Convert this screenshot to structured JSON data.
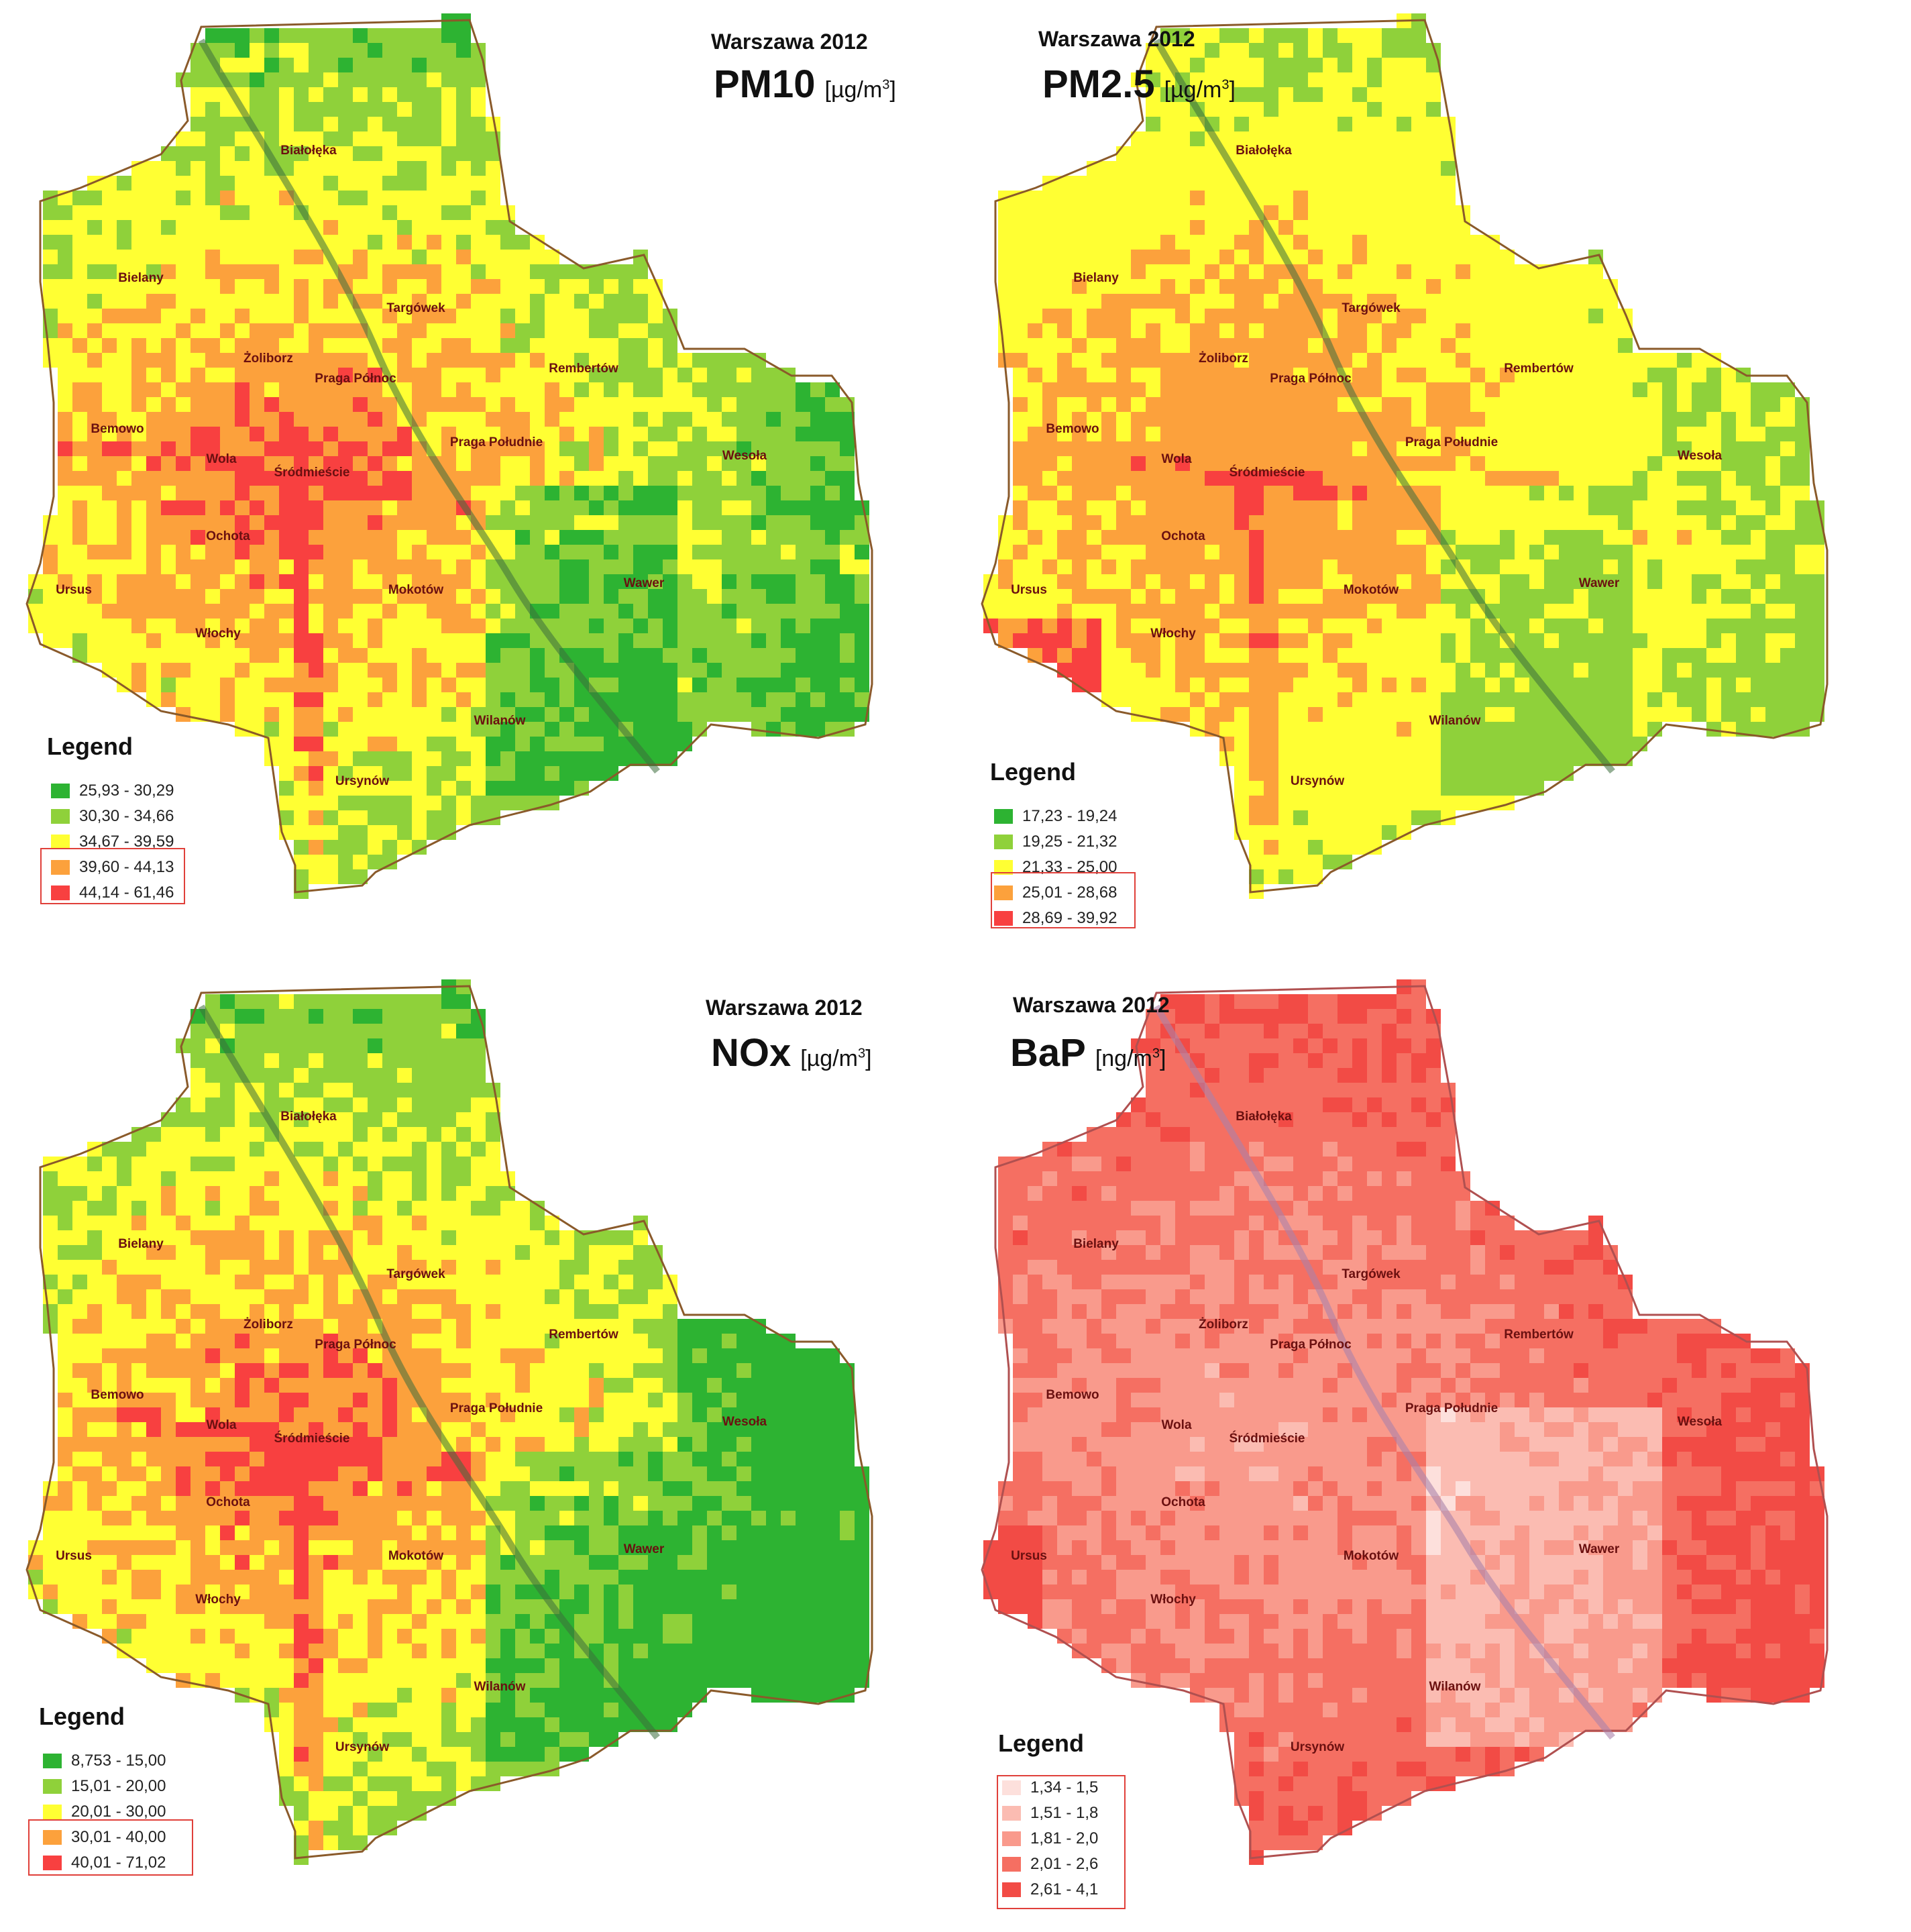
{
  "panels": [
    {
      "id": "pm10",
      "year_title": "Warszawa 2012",
      "pollutant": "PM10",
      "unit": "[µg/m3]",
      "unit_base": "[µg/m",
      "unit_sup": "3",
      "unit_close": "]",
      "legend_title": "Legend",
      "legend": [
        {
          "range": "25,93 - 30,29",
          "color": "#2db332"
        },
        {
          "range": "30,30 - 34,66",
          "color": "#8fd13a"
        },
        {
          "range": "34,67 - 39,59",
          "color": "#ffff33"
        },
        {
          "range": "39,60 - 44,13",
          "color": "#fca13c"
        },
        {
          "range": "44,14 - 61,46",
          "color": "#f84040"
        }
      ],
      "highlighted_classes": [
        "39,60 - 44,13",
        "44,14 - 61,46"
      ]
    },
    {
      "id": "pm25",
      "year_title": "Warszawa 2012",
      "pollutant": "PM2.5",
      "unit": "[µg/m3]",
      "unit_base": "[µg/m",
      "unit_sup": "3",
      "unit_close": "]",
      "legend_title": "Legend",
      "legend": [
        {
          "range": "17,23 - 19,24",
          "color": "#2db332"
        },
        {
          "range": "19,25 - 21,32",
          "color": "#8fd13a"
        },
        {
          "range": "21,33 - 25,00",
          "color": "#ffff33"
        },
        {
          "range": "25,01 - 28,68",
          "color": "#fca13c"
        },
        {
          "range": "28,69 - 39,92",
          "color": "#f84040"
        }
      ],
      "highlighted_classes": [
        "25,01 - 28,68",
        "28,69 - 39,92"
      ]
    },
    {
      "id": "nox",
      "year_title": "Warszawa 2012",
      "pollutant": "NOx",
      "unit": "[µg/m3]",
      "unit_base": "[µg/m",
      "unit_sup": "3",
      "unit_close": "]",
      "legend_title": "Legend",
      "legend": [
        {
          "range": "8,753 - 15,00",
          "color": "#2db332"
        },
        {
          "range": "15,01 - 20,00",
          "color": "#8fd13a"
        },
        {
          "range": "20,01 - 30,00",
          "color": "#ffff33"
        },
        {
          "range": "30,01 - 40,00",
          "color": "#fca13c"
        },
        {
          "range": "40,01 - 71,02",
          "color": "#f84040"
        }
      ],
      "highlighted_classes": [
        "30,01 - 40,00",
        "40,01 - 71,02"
      ]
    },
    {
      "id": "bap",
      "year_title": "Warszawa 2012",
      "pollutant": "BaP",
      "unit": "[ng/m3]",
      "unit_base": "[ng/m",
      "unit_sup": "3",
      "unit_close": "]",
      "legend_title": "Legend",
      "legend": [
        {
          "range": "1,34 - 1,5",
          "color": "#fde0dc"
        },
        {
          "range": "1,51 - 1,8",
          "color": "#fbbcb2"
        },
        {
          "range": "1,81 - 2,0",
          "color": "#f99a8c"
        },
        {
          "range": "2,01 - 2,6",
          "color": "#f56f62"
        },
        {
          "range": "2,61 - 4,1",
          "color": "#f24b45"
        }
      ],
      "highlighted_classes": [
        "1,34 - 1,5",
        "1,51 - 1,8",
        "1,81 - 2,0",
        "2,01 - 2,6",
        "2,61 - 4,1"
      ]
    }
  ],
  "districts": [
    "Białołęka",
    "Bielany",
    "Targówek",
    "Żoliborz",
    "Praga Północ",
    "Rembertów",
    "Bemowo",
    "Praga Południe",
    "Wesoła",
    "Wola",
    "Śródmieście",
    "Ochota",
    "Ursus",
    "Mokotów",
    "Wawer",
    "Włochy",
    "Wilanów",
    "Ursynów"
  ]
}
